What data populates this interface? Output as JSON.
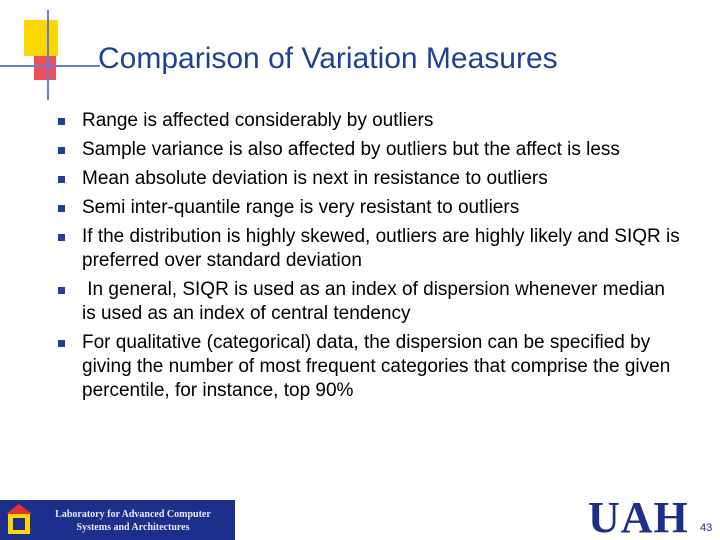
{
  "header": {
    "title": "Comparison of Variation Measures"
  },
  "bullets": [
    "Range is affected considerably by outliers",
    "Sample variance is also affected by outliers but the affect is less",
    "Mean absolute deviation is next in resistance to outliers",
    "Semi inter-quantile range is very resistant to outliers",
    "If the distribution is highly skewed, outliers are highly likely and SIQR is preferred over standard deviation",
    " In general, SIQR is used as an index of dispersion whenever median is used as an index of central tendency",
    "For qualitative (categorical) data, the dispersion can be specified by giving the number of most frequent categories that comprise the given percentile, for instance, top 90%"
  ],
  "footer": {
    "lab_line1": "Laboratory for Advanced Computer",
    "lab_line2": "Systems and Architectures",
    "logo": "UAH",
    "page_number": "43"
  }
}
